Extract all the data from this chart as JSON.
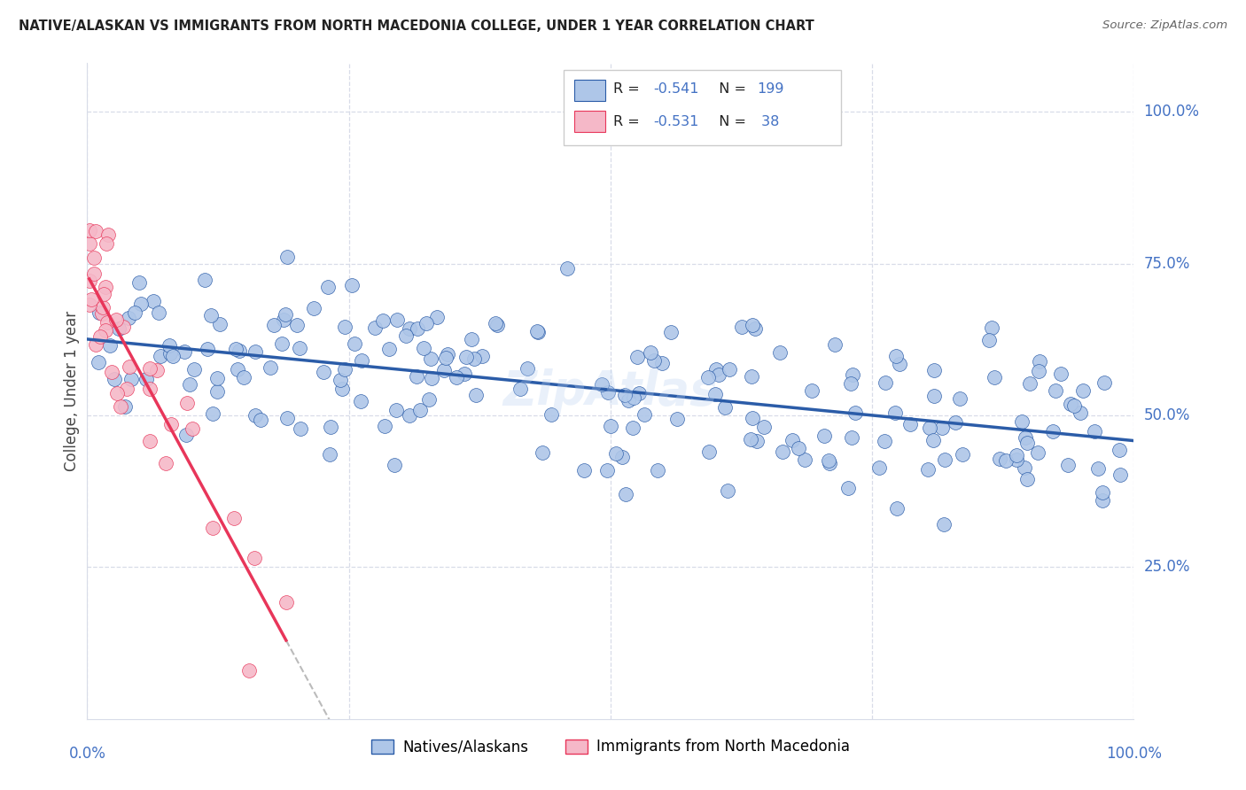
{
  "title": "NATIVE/ALASKAN VS IMMIGRANTS FROM NORTH MACEDONIA COLLEGE, UNDER 1 YEAR CORRELATION CHART",
  "source": "Source: ZipAtlas.com",
  "ylabel": "College, Under 1 year",
  "ytick_labels": [
    "25.0%",
    "50.0%",
    "75.0%",
    "100.0%"
  ],
  "ytick_values": [
    0.25,
    0.5,
    0.75,
    1.0
  ],
  "blue_R": -0.541,
  "blue_N": 199,
  "pink_R": -0.531,
  "pink_N": 38,
  "blue_color": "#aec6e8",
  "blue_line_color": "#2b5ca8",
  "pink_color": "#f5b8c8",
  "pink_line_color": "#e8365a",
  "watermark": "ZipAtlas",
  "background_color": "#ffffff",
  "grid_color": "#d8dce8",
  "right_label_color": "#4472c4",
  "title_color": "#222222",
  "source_color": "#666666"
}
